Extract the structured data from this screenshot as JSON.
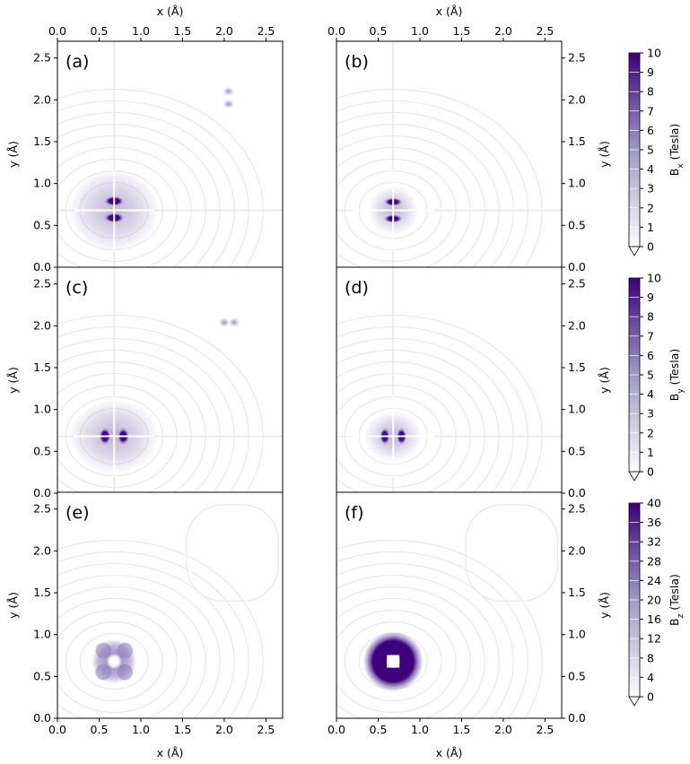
{
  "chart_data": {
    "type": "heatmap",
    "title": "",
    "xlabel": "x (Å)",
    "ylabel": "y (Å)",
    "xlim": [
      0,
      2.7
    ],
    "ylim": [
      0,
      2.7
    ],
    "xticks": [
      0.0,
      0.5,
      1.0,
      1.5,
      2.0,
      2.5
    ],
    "yticks": [
      0.0,
      0.5,
      1.0,
      1.5,
      2.0,
      2.5
    ],
    "xtick_labels": [
      "0.0",
      "0.5",
      "1.0",
      "1.5",
      "2.0",
      "2.5"
    ],
    "ytick_labels": [
      "0.0",
      "0.5",
      "1.0",
      "1.5",
      "2.0",
      "2.5"
    ],
    "colormap": "Purples",
    "colors": {
      "low": "#ffffff",
      "mid": "#8a78b8",
      "high": "#3f007d",
      "contour": "#e6e6e6"
    },
    "panels": [
      {
        "label": "(a)",
        "component": "Bx",
        "center": [
          0.68,
          0.68
        ],
        "features": [
          {
            "kind": "lobe",
            "x": 0.68,
            "y": 0.79,
            "rx": 0.12,
            "ry": 0.06,
            "value": 10
          },
          {
            "kind": "lobe",
            "x": 0.68,
            "y": 0.59,
            "rx": 0.12,
            "ry": 0.06,
            "value": 10
          },
          {
            "kind": "halo",
            "x": 0.68,
            "y": 0.68,
            "rx": 0.55,
            "ry": 0.5,
            "value": 3
          },
          {
            "kind": "spot",
            "x": 2.05,
            "y": 2.1,
            "value": 1.5
          },
          {
            "kind": "spot",
            "x": 2.05,
            "y": 1.95,
            "value": 1.5
          }
        ]
      },
      {
        "label": "(b)",
        "component": "Bx",
        "center": [
          0.68,
          0.68
        ],
        "features": [
          {
            "kind": "lobe",
            "x": 0.68,
            "y": 0.78,
            "rx": 0.11,
            "ry": 0.05,
            "value": 10
          },
          {
            "kind": "lobe",
            "x": 0.68,
            "y": 0.58,
            "rx": 0.11,
            "ry": 0.05,
            "value": 10
          },
          {
            "kind": "halo",
            "x": 0.68,
            "y": 0.68,
            "rx": 0.3,
            "ry": 0.3,
            "value": 2
          }
        ]
      },
      {
        "label": "(c)",
        "component": "By",
        "center": [
          0.68,
          0.68
        ],
        "features": [
          {
            "kind": "lobe",
            "x": 0.57,
            "y": 0.68,
            "rx": 0.07,
            "ry": 0.1,
            "value": 10
          },
          {
            "kind": "lobe",
            "x": 0.79,
            "y": 0.68,
            "rx": 0.07,
            "ry": 0.1,
            "value": 10
          },
          {
            "kind": "halo",
            "x": 0.68,
            "y": 0.68,
            "rx": 0.55,
            "ry": 0.45,
            "value": 3
          },
          {
            "kind": "spot",
            "x": 2.0,
            "y": 2.04,
            "value": 1.5
          },
          {
            "kind": "spot",
            "x": 2.12,
            "y": 2.04,
            "value": 1.5
          }
        ]
      },
      {
        "label": "(d)",
        "component": "By",
        "center": [
          0.68,
          0.68
        ],
        "features": [
          {
            "kind": "lobe",
            "x": 0.58,
            "y": 0.68,
            "rx": 0.06,
            "ry": 0.1,
            "value": 10
          },
          {
            "kind": "lobe",
            "x": 0.78,
            "y": 0.68,
            "rx": 0.06,
            "ry": 0.1,
            "value": 10
          },
          {
            "kind": "halo",
            "x": 0.68,
            "y": 0.68,
            "rx": 0.35,
            "ry": 0.3,
            "value": 2
          }
        ]
      },
      {
        "label": "(e)",
        "component": "Bz",
        "center": [
          0.68,
          0.68
        ],
        "features": [
          {
            "kind": "square",
            "x": 0.68,
            "y": 0.68,
            "half": 0.27,
            "value": 20
          }
        ]
      },
      {
        "label": "(f)",
        "component": "Bz",
        "center": [
          0.68,
          0.68
        ],
        "features": [
          {
            "kind": "ring",
            "x": 0.68,
            "y": 0.68,
            "r": 0.36,
            "value": 40
          }
        ]
      }
    ],
    "colorbars": [
      {
        "label_main": "B",
        "label_sub": "x",
        "label_unit": " (Tesla)",
        "ticks": [
          "0",
          "1",
          "2",
          "3",
          "4",
          "5",
          "6",
          "7",
          "8",
          "9",
          "10"
        ],
        "min": 0,
        "max": 10
      },
      {
        "label_main": "B",
        "label_sub": "y",
        "label_unit": " (Tesla)",
        "ticks": [
          "0",
          "1",
          "2",
          "3",
          "4",
          "5",
          "6",
          "7",
          "8",
          "9",
          "10"
        ],
        "min": 0,
        "max": 10
      },
      {
        "label_main": "B",
        "label_sub": "z",
        "label_unit": " (Tesla)",
        "ticks": [
          "0",
          "4",
          "8",
          "12",
          "16",
          "20",
          "24",
          "28",
          "32",
          "36",
          "40"
        ],
        "min": 0,
        "max": 40
      }
    ]
  }
}
